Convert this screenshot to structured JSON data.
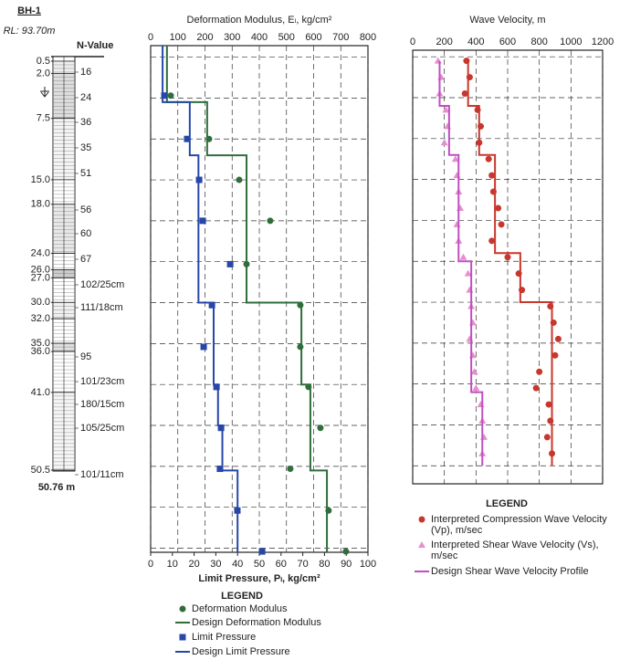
{
  "borehole": {
    "title": "BH-1",
    "rl": "RL: 93.70m",
    "n_header": "N-Value",
    "depths": [
      {
        "value": 0.5,
        "label": "0.5"
      },
      {
        "value": 2,
        "label": "2.0"
      },
      {
        "value": 7.5,
        "label": "7.5"
      },
      {
        "value": 15,
        "label": "15.0"
      },
      {
        "value": 18,
        "label": "18.0"
      },
      {
        "value": 24,
        "label": "24.0"
      },
      {
        "value": 26,
        "label": "26.0"
      },
      {
        "value": 27,
        "label": "27.0"
      },
      {
        "value": 30,
        "label": "30.0"
      },
      {
        "value": 32,
        "label": "32.0"
      },
      {
        "value": 35,
        "label": "35.0"
      },
      {
        "value": 36,
        "label": "36.0"
      },
      {
        "value": 41,
        "label": "41.0"
      },
      {
        "value": 50.5,
        "label": "50.5"
      }
    ],
    "n_values": [
      "16",
      "24",
      "36",
      "35",
      "51",
      "56",
      "60",
      "67",
      "102/25cm",
      "111/18cm",
      "95",
      "101/23cm",
      "180/15cm",
      "105/25cm",
      "101/11cm"
    ],
    "total_depth": "50.76 m"
  },
  "chart_data": [
    {
      "type": "scatter",
      "title": "Deformation Modulus, Eₗ, kg/cm²",
      "x_label_bottom": "Limit Pressure, Pₗ, kg/cm²",
      "xlim": [
        0,
        800
      ],
      "xticks": [
        0,
        100,
        200,
        300,
        400,
        500,
        600,
        700,
        800
      ],
      "x2lim": [
        0,
        100
      ],
      "x2ticks": [
        0,
        10,
        20,
        30,
        40,
        50,
        60,
        70,
        80,
        90,
        100
      ],
      "ylim": [
        -1.4,
        60.5
      ],
      "yticks": [
        0,
        5,
        10,
        15,
        20,
        25,
        30,
        35,
        40,
        45,
        50,
        55,
        60
      ],
      "grid": true,
      "legend_title": "LEGEND",
      "series": [
        {
          "name": "Deformation Modulus",
          "color": "#2f6e3b",
          "marker": "circle",
          "axis": "x",
          "values": [
            74,
            215,
            326,
            440,
            353,
            551,
            551,
            581,
            625,
            514,
            655,
            719
          ],
          "depths": [
            4.7,
            10,
            15,
            20,
            25.3,
            30.3,
            35.4,
            40.3,
            45.3,
            50.3,
            55.4,
            60.4
          ]
        },
        {
          "name": "Design Deformation Modulus",
          "color": "#2f6e3b",
          "axis": "x",
          "values": [
            60,
            60,
            208,
            208,
            353,
            353,
            555,
            555,
            588,
            588,
            649,
            649
          ],
          "depths": [
            -1.4,
            5.5,
            5.5,
            12,
            12,
            30,
            30,
            40,
            40,
            50.5,
            50.5,
            60.5
          ]
        },
        {
          "name": "Limit Pressure",
          "color": "#2747a8",
          "marker": "square",
          "axis": "x2",
          "values": [
            6.3,
            16.8,
            22.3,
            24,
            36.6,
            28.2,
            24.4,
            30.3,
            32.4,
            31.9,
            39.9,
            51.3
          ],
          "depths": [
            4.7,
            10,
            15,
            20,
            25.3,
            30.3,
            35.4,
            40.3,
            45.3,
            50.3,
            55.4,
            60.4
          ]
        },
        {
          "name": "Design Limit Pressure",
          "color": "#2747a8",
          "axis": "x2",
          "values": [
            5.5,
            5.5,
            18,
            18,
            22,
            22,
            29,
            29,
            31,
            31,
            33,
            33,
            40,
            40
          ],
          "depths": [
            -1.4,
            5.5,
            5.5,
            12,
            12,
            30,
            30,
            40,
            40,
            45,
            45,
            50.5,
            50.5,
            60.5
          ]
        }
      ]
    },
    {
      "type": "scatter",
      "title": "Wave Velocity, m",
      "xlim": [
        0,
        1200
      ],
      "xticks": [
        0,
        200,
        400,
        600,
        800,
        1000,
        1200
      ],
      "ylim": [
        -0.8,
        52.2
      ],
      "yticks": [
        0,
        5,
        10,
        15,
        20,
        25,
        30,
        35,
        40,
        45,
        50
      ],
      "grid": true,
      "legend_title": "LEGEND",
      "series": [
        {
          "name": "Interpreted Compression Wave Velocity (Vp), m/sec",
          "color": "#c8372d",
          "marker": "circle",
          "axis": "x",
          "values": [
            340,
            360,
            330,
            410,
            430,
            420,
            480,
            500,
            510,
            540,
            560,
            500,
            600,
            670,
            690,
            870,
            890,
            920,
            900,
            800,
            780,
            860,
            870,
            850,
            880
          ],
          "depths": [
            0.5,
            2.5,
            4.5,
            6.5,
            8.5,
            10.5,
            12.5,
            14.5,
            16.5,
            18.5,
            20.5,
            22.5,
            24.5,
            26.5,
            28.5,
            30.5,
            32.5,
            34.5,
            36.5,
            38.5,
            40.5,
            42.5,
            44.5,
            46.5,
            48.5
          ]
        },
        {
          "name": "Interpreted Shear Wave Velocity (Vs), m/sec",
          "color": "#e58fcf",
          "marker": "triangle",
          "axis": "x",
          "values": [
            160,
            180,
            170,
            210,
            220,
            200,
            270,
            280,
            290,
            300,
            280,
            290,
            320,
            350,
            360,
            370,
            380,
            360,
            380,
            390,
            400,
            430,
            440,
            450,
            440
          ],
          "depths": [
            0.5,
            2.5,
            4.5,
            6.5,
            8.5,
            10.5,
            12.5,
            14.5,
            16.5,
            18.5,
            20.5,
            22.5,
            24.5,
            26.5,
            28.5,
            30.5,
            32.5,
            34.5,
            36.5,
            38.5,
            40.5,
            42.5,
            44.5,
            46.5,
            48.5
          ]
        },
        {
          "color": "#c8372d",
          "axis": "x",
          "values": [
            350,
            350,
            420,
            420,
            520,
            520,
            680,
            680,
            880,
            880
          ],
          "depths": [
            0.5,
            6,
            6,
            12,
            12,
            24,
            24,
            30,
            30,
            50
          ]
        },
        {
          "name": "Design Shear Wave Velocity Profile",
          "color": "#c04fc0",
          "axis": "x",
          "values": [
            170,
            170,
            230,
            230,
            290,
            290,
            370,
            370,
            440,
            440
          ],
          "depths": [
            0.5,
            6,
            6,
            12,
            12,
            25,
            25,
            41,
            41,
            50
          ]
        }
      ]
    }
  ]
}
